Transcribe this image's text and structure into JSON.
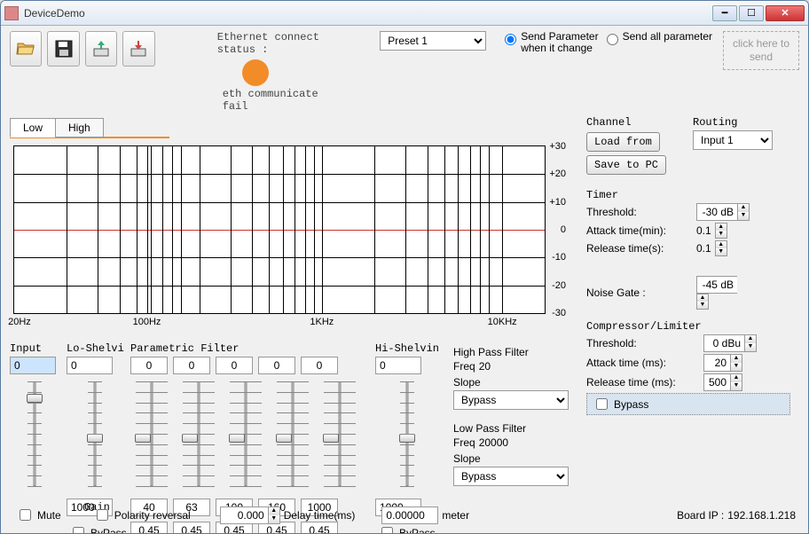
{
  "window": {
    "title": "DeviceDemo"
  },
  "ethernet": {
    "status_label": "Ethernet connect status :",
    "indicator_color": "#f28c28",
    "fail_text": "eth communicate fail"
  },
  "preset": {
    "selected": "Preset 1"
  },
  "send_mode": {
    "on_change": "Send Parameter\nwhen it change",
    "all": "Send all parameter",
    "click_hint": "click here to\nsend",
    "selected": "on_change"
  },
  "tabs": {
    "items": [
      "Low",
      "High"
    ],
    "active": 0
  },
  "graph": {
    "y_ticks": [
      30,
      20,
      10,
      0,
      -10,
      -20,
      -30
    ],
    "x_labels": [
      "20Hz",
      "100Hz",
      "1KHz",
      "10KHz"
    ],
    "x_label_pos_pct": [
      1,
      25,
      58,
      92
    ],
    "decade_starts_pct": [
      0,
      25,
      58,
      92
    ],
    "decade_width_pct": 33,
    "log_steps": [
      0,
      30.1,
      47.7,
      60.2,
      69.9,
      77.8,
      84.5,
      90.3,
      95.4
    ],
    "redline_at": 0
  },
  "channel": {
    "title": "Channel",
    "load_btn": "Load from",
    "save_btn": "Save to PC"
  },
  "routing": {
    "title": "Routing",
    "selected": "Input 1"
  },
  "timer": {
    "title": "Timer",
    "threshold_label": "Threshold:",
    "threshold_value": "-30 dB",
    "attack_label": "Attack time(min):",
    "attack_value": "0.1",
    "release_label": "Release time(s):",
    "release_value": "0.1"
  },
  "noise_gate": {
    "label": "Noise Gate :",
    "value": "-45 dB"
  },
  "compressor": {
    "title": "Compressor/Limiter",
    "threshold_label": "Threshold:",
    "threshold_value": "0 dBu",
    "attack_label": "Attack time (ms):",
    "attack_value": "20",
    "release_label": "Release time (ms):",
    "release_value": "500",
    "bypass_label": "Bypass"
  },
  "filters": {
    "input_label": "Input",
    "input_value": "0",
    "lo_shelf_label": "Lo-Shelvi",
    "lo_shelf_value": "0",
    "lo_shelf_freq": "1000",
    "lo_shelf_bypass": "ByPass",
    "parametric_label": "Parametric Filter",
    "param_values": [
      "0",
      "0",
      "0",
      "0",
      "0"
    ],
    "param_freqs": [
      "40",
      "63",
      "100",
      "160",
      "1000"
    ],
    "param_q": [
      "0.45",
      "0.45",
      "0.45",
      "0.45",
      "0.45"
    ],
    "hi_shelf_label": "Hi-Shelvin",
    "hi_shelf_value": "0",
    "hi_shelf_freq": "1000",
    "hi_shelf_bypass": "ByPass",
    "gain_label": "Gain",
    "slider_pos_pct": 50,
    "input_slider_pos_pct": 12
  },
  "hpf": {
    "title": "High Pass Filter",
    "freq_label": "Freq",
    "freq_value": "20",
    "slope_label": "Slope",
    "slope_value": "Bypass"
  },
  "lpf": {
    "title": "Low Pass Filter",
    "freq_label": "Freq",
    "freq_value": "20000",
    "slope_label": "Slope",
    "slope_value": "Bypass"
  },
  "footer": {
    "mute": "Mute",
    "polarity": "Polarity reversal",
    "delay_value": "0.000",
    "delay_label": "Delay time(ms)",
    "meter_value": "0.00000",
    "meter_unit": "meter",
    "board_ip_label": "Board IP :",
    "board_ip": "192.168.1.218"
  }
}
